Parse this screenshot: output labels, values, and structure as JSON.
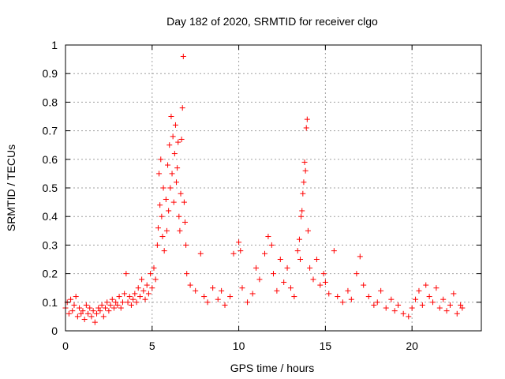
{
  "chart_data": {
    "type": "scatter",
    "title": "Day 182 of 2020, SRMTID for receiver clgo",
    "xlabel": "GPS time / hours",
    "ylabel": "SRMTID / TECUs",
    "xlim": [
      0,
      24
    ],
    "ylim": [
      0,
      1
    ],
    "x_ticks": [
      0,
      5,
      10,
      15,
      20
    ],
    "y_ticks": [
      0,
      0.1,
      0.2,
      0.3,
      0.4,
      0.5,
      0.6,
      0.7,
      0.8,
      0.9,
      1
    ],
    "x_tick_labels": [
      "0",
      "5",
      "10",
      "15",
      "20"
    ],
    "y_tick_labels": [
      "0",
      "0.1",
      "0.2",
      "0.3",
      "0.4",
      "0.5",
      "0.6",
      "0.7",
      "0.8",
      "0.9",
      "1"
    ],
    "grid": true,
    "marker": "plus",
    "color": "#ff0000",
    "series": [
      {
        "name": "SRMTID",
        "points": [
          [
            0.0,
            0.08
          ],
          [
            0.1,
            0.1
          ],
          [
            0.2,
            0.06
          ],
          [
            0.3,
            0.11
          ],
          [
            0.4,
            0.07
          ],
          [
            0.5,
            0.09
          ],
          [
            0.6,
            0.12
          ],
          [
            0.7,
            0.05
          ],
          [
            0.8,
            0.08
          ],
          [
            0.9,
            0.06
          ],
          [
            1.0,
            0.07
          ],
          [
            1.1,
            0.04
          ],
          [
            1.2,
            0.09
          ],
          [
            1.3,
            0.06
          ],
          [
            1.4,
            0.08
          ],
          [
            1.5,
            0.05
          ],
          [
            1.6,
            0.07
          ],
          [
            1.7,
            0.03
          ],
          [
            1.8,
            0.06
          ],
          [
            1.9,
            0.08
          ],
          [
            2.0,
            0.07
          ],
          [
            2.1,
            0.09
          ],
          [
            2.2,
            0.05
          ],
          [
            2.3,
            0.08
          ],
          [
            2.4,
            0.1
          ],
          [
            2.5,
            0.07
          ],
          [
            2.6,
            0.09
          ],
          [
            2.7,
            0.11
          ],
          [
            2.8,
            0.08
          ],
          [
            2.9,
            0.1
          ],
          [
            3.0,
            0.09
          ],
          [
            3.1,
            0.12
          ],
          [
            3.2,
            0.08
          ],
          [
            3.3,
            0.1
          ],
          [
            3.4,
            0.13
          ],
          [
            3.5,
            0.2
          ],
          [
            3.6,
            0.1
          ],
          [
            3.7,
            0.12
          ],
          [
            3.8,
            0.09
          ],
          [
            3.9,
            0.11
          ],
          [
            4.0,
            0.13
          ],
          [
            4.1,
            0.1
          ],
          [
            4.2,
            0.15
          ],
          [
            4.3,
            0.12
          ],
          [
            4.4,
            0.18
          ],
          [
            4.5,
            0.14
          ],
          [
            4.6,
            0.11
          ],
          [
            4.7,
            0.16
          ],
          [
            4.8,
            0.13
          ],
          [
            4.9,
            0.2
          ],
          [
            5.0,
            0.15
          ],
          [
            5.1,
            0.22
          ],
          [
            5.2,
            0.18
          ],
          [
            5.3,
            0.3
          ],
          [
            5.35,
            0.36
          ],
          [
            5.4,
            0.55
          ],
          [
            5.45,
            0.44
          ],
          [
            5.5,
            0.6
          ],
          [
            5.55,
            0.4
          ],
          [
            5.6,
            0.33
          ],
          [
            5.65,
            0.5
          ],
          [
            5.7,
            0.28
          ],
          [
            5.8,
            0.46
          ],
          [
            5.85,
            0.35
          ],
          [
            5.9,
            0.58
          ],
          [
            5.95,
            0.42
          ],
          [
            6.0,
            0.65
          ],
          [
            6.05,
            0.5
          ],
          [
            6.1,
            0.75
          ],
          [
            6.15,
            0.55
          ],
          [
            6.2,
            0.68
          ],
          [
            6.25,
            0.45
          ],
          [
            6.3,
            0.62
          ],
          [
            6.35,
            0.72
          ],
          [
            6.4,
            0.52
          ],
          [
            6.45,
            0.57
          ],
          [
            6.5,
            0.66
          ],
          [
            6.55,
            0.4
          ],
          [
            6.6,
            0.35
          ],
          [
            6.65,
            0.48
          ],
          [
            6.7,
            0.67
          ],
          [
            6.75,
            0.78
          ],
          [
            6.8,
            0.96
          ],
          [
            6.85,
            0.45
          ],
          [
            6.9,
            0.38
          ],
          [
            6.95,
            0.3
          ],
          [
            7.0,
            0.2
          ],
          [
            7.2,
            0.16
          ],
          [
            7.5,
            0.14
          ],
          [
            7.8,
            0.27
          ],
          [
            8.0,
            0.12
          ],
          [
            8.2,
            0.1
          ],
          [
            8.5,
            0.15
          ],
          [
            8.8,
            0.11
          ],
          [
            9.0,
            0.14
          ],
          [
            9.2,
            0.09
          ],
          [
            9.5,
            0.12
          ],
          [
            9.7,
            0.27
          ],
          [
            10.0,
            0.31
          ],
          [
            10.1,
            0.28
          ],
          [
            10.2,
            0.15
          ],
          [
            10.5,
            0.1
          ],
          [
            10.8,
            0.13
          ],
          [
            11.0,
            0.22
          ],
          [
            11.2,
            0.18
          ],
          [
            11.5,
            0.27
          ],
          [
            11.7,
            0.33
          ],
          [
            11.9,
            0.3
          ],
          [
            12.0,
            0.2
          ],
          [
            12.2,
            0.14
          ],
          [
            12.4,
            0.25
          ],
          [
            12.6,
            0.17
          ],
          [
            12.8,
            0.22
          ],
          [
            13.0,
            0.15
          ],
          [
            13.2,
            0.12
          ],
          [
            13.4,
            0.28
          ],
          [
            13.5,
            0.32
          ],
          [
            13.55,
            0.25
          ],
          [
            13.6,
            0.4
          ],
          [
            13.65,
            0.42
          ],
          [
            13.7,
            0.48
          ],
          [
            13.75,
            0.52
          ],
          [
            13.8,
            0.59
          ],
          [
            13.85,
            0.56
          ],
          [
            13.9,
            0.71
          ],
          [
            13.95,
            0.74
          ],
          [
            14.0,
            0.35
          ],
          [
            14.1,
            0.22
          ],
          [
            14.3,
            0.18
          ],
          [
            14.5,
            0.25
          ],
          [
            14.7,
            0.16
          ],
          [
            14.9,
            0.2
          ],
          [
            15.0,
            0.17
          ],
          [
            15.2,
            0.13
          ],
          [
            15.5,
            0.28
          ],
          [
            15.7,
            0.12
          ],
          [
            16.0,
            0.1
          ],
          [
            16.3,
            0.14
          ],
          [
            16.5,
            0.11
          ],
          [
            16.8,
            0.2
          ],
          [
            17.0,
            0.26
          ],
          [
            17.2,
            0.16
          ],
          [
            17.5,
            0.12
          ],
          [
            17.8,
            0.09
          ],
          [
            18.0,
            0.1
          ],
          [
            18.2,
            0.14
          ],
          [
            18.5,
            0.08
          ],
          [
            18.8,
            0.11
          ],
          [
            19.0,
            0.07
          ],
          [
            19.2,
            0.09
          ],
          [
            19.5,
            0.06
          ],
          [
            19.8,
            0.05
          ],
          [
            20.0,
            0.08
          ],
          [
            20.2,
            0.11
          ],
          [
            20.4,
            0.14
          ],
          [
            20.6,
            0.09
          ],
          [
            20.8,
            0.16
          ],
          [
            21.0,
            0.12
          ],
          [
            21.2,
            0.1
          ],
          [
            21.4,
            0.15
          ],
          [
            21.6,
            0.08
          ],
          [
            21.8,
            0.11
          ],
          [
            22.0,
            0.07
          ],
          [
            22.2,
            0.09
          ],
          [
            22.4,
            0.13
          ],
          [
            22.6,
            0.06
          ],
          [
            22.8,
            0.09
          ],
          [
            22.9,
            0.08
          ]
        ]
      }
    ]
  }
}
